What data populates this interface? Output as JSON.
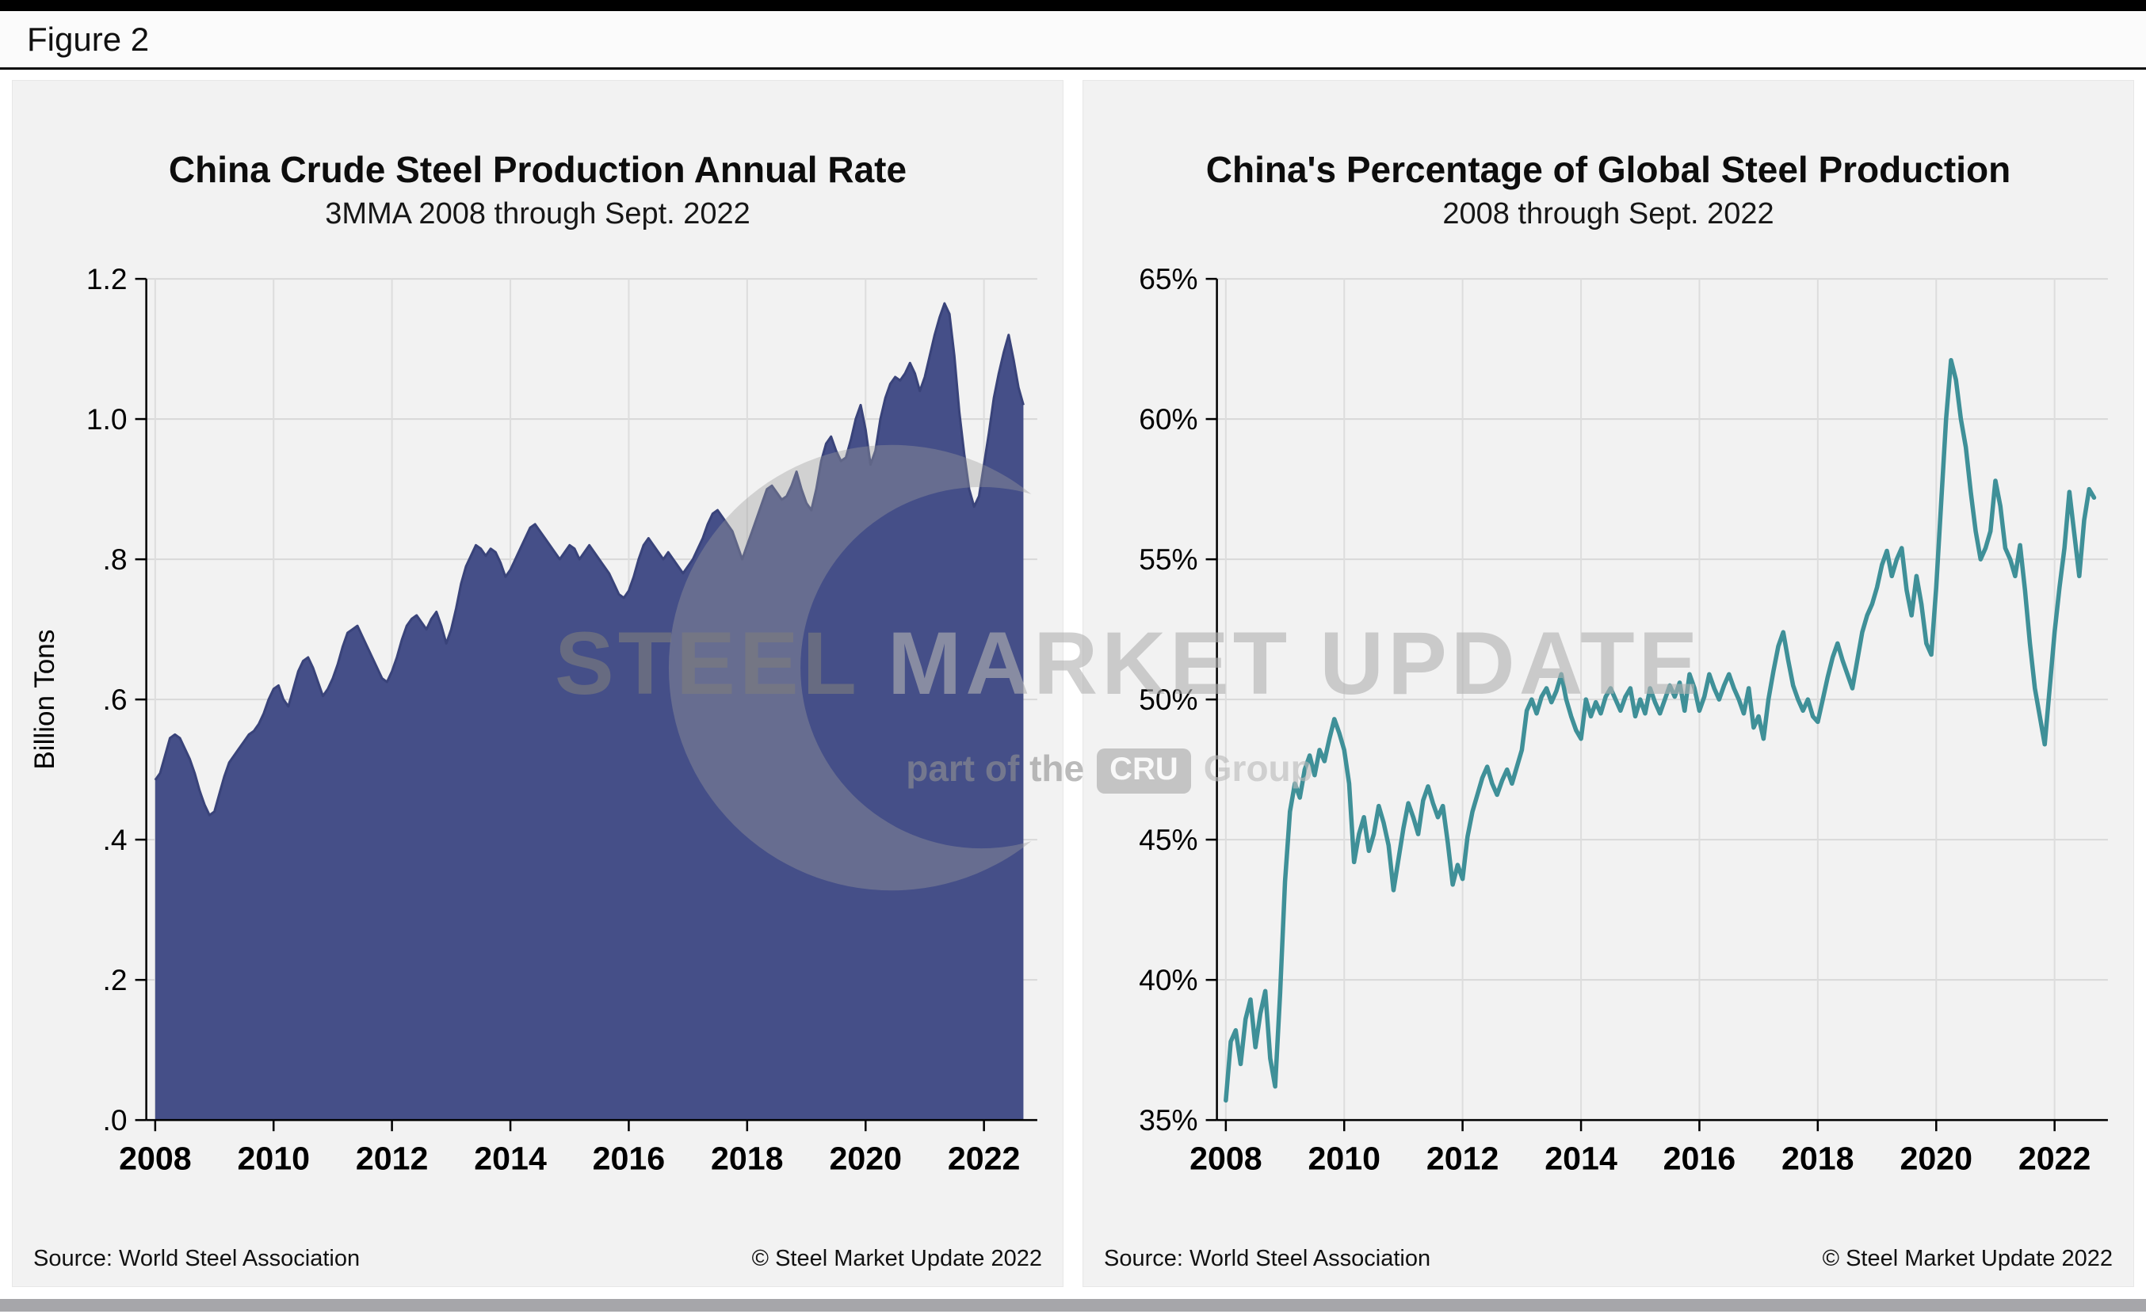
{
  "figure_label": "Figure 2",
  "watermark": {
    "steel": "STEEL",
    "market_update": " MARKET UPDATE",
    "part_of": "part of the",
    "cru": "CRU",
    "group": "Group"
  },
  "charts": [
    {
      "source": "Source: World Steel Association",
      "copyright": "© Steel Market Update 2022",
      "chart_data": {
        "type": "area",
        "title": "China Crude Steel Production Annual Rate",
        "subtitle": "3MMA 2008 through Sept. 2022",
        "ylabel": "Billion Tons",
        "xlabel": "",
        "color": "#454f88",
        "edge_color": "#39437a",
        "ylim": [
          0,
          1.2
        ],
        "xlim": [
          2007.85,
          2022.9
        ],
        "grid": true,
        "y_tick_values": [
          0,
          0.2,
          0.4,
          0.6,
          0.8,
          1.0,
          1.2
        ],
        "y_tick_labels": [
          ".0",
          ".2",
          ".4",
          ".6",
          ".8",
          "1.0",
          "1.2"
        ],
        "x_ticks": [
          2008,
          2010,
          2012,
          2014,
          2016,
          2018,
          2020,
          2022
        ],
        "x_start_year": 2008,
        "frequency": "monthly",
        "end_period": "Sept. 2022",
        "values": [
          0.485,
          0.495,
          0.52,
          0.545,
          0.55,
          0.545,
          0.53,
          0.515,
          0.495,
          0.47,
          0.45,
          0.435,
          0.44,
          0.465,
          0.49,
          0.51,
          0.52,
          0.53,
          0.54,
          0.55,
          0.555,
          0.565,
          0.58,
          0.6,
          0.615,
          0.62,
          0.6,
          0.59,
          0.615,
          0.64,
          0.655,
          0.66,
          0.645,
          0.625,
          0.605,
          0.615,
          0.63,
          0.65,
          0.675,
          0.695,
          0.7,
          0.705,
          0.69,
          0.675,
          0.66,
          0.645,
          0.63,
          0.625,
          0.64,
          0.66,
          0.685,
          0.705,
          0.715,
          0.72,
          0.71,
          0.7,
          0.715,
          0.725,
          0.705,
          0.68,
          0.7,
          0.73,
          0.765,
          0.79,
          0.805,
          0.82,
          0.815,
          0.805,
          0.815,
          0.81,
          0.795,
          0.775,
          0.785,
          0.8,
          0.815,
          0.83,
          0.845,
          0.85,
          0.84,
          0.83,
          0.82,
          0.81,
          0.8,
          0.81,
          0.82,
          0.815,
          0.8,
          0.81,
          0.82,
          0.81,
          0.8,
          0.79,
          0.78,
          0.765,
          0.75,
          0.745,
          0.755,
          0.775,
          0.8,
          0.82,
          0.83,
          0.82,
          0.81,
          0.8,
          0.81,
          0.8,
          0.79,
          0.78,
          0.79,
          0.8,
          0.815,
          0.83,
          0.85,
          0.865,
          0.87,
          0.86,
          0.85,
          0.84,
          0.82,
          0.8,
          0.82,
          0.84,
          0.86,
          0.88,
          0.9,
          0.905,
          0.895,
          0.885,
          0.89,
          0.905,
          0.925,
          0.9,
          0.88,
          0.87,
          0.9,
          0.94,
          0.965,
          0.975,
          0.955,
          0.94,
          0.945,
          0.97,
          1.0,
          1.02,
          0.985,
          0.935,
          0.955,
          1.0,
          1.03,
          1.05,
          1.06,
          1.055,
          1.065,
          1.08,
          1.065,
          1.04,
          1.06,
          1.09,
          1.12,
          1.145,
          1.165,
          1.15,
          1.09,
          1.01,
          0.95,
          0.9,
          0.875,
          0.89,
          0.935,
          0.98,
          1.03,
          1.065,
          1.095,
          1.12,
          1.085,
          1.045,
          1.02
        ]
      }
    },
    {
      "source": "Source: World Steel Association",
      "copyright": "© Steel Market Update 2022",
      "chart_data": {
        "type": "line",
        "title": "China's Percentage of Global Steel Production",
        "subtitle": "2008 through Sept. 2022",
        "ylabel": "",
        "xlabel": "",
        "color": "#3f9098",
        "ylim": [
          35,
          65
        ],
        "xlim": [
          2007.85,
          2022.9
        ],
        "grid": true,
        "y_tick_values": [
          35,
          40,
          45,
          50,
          55,
          60,
          65
        ],
        "y_tick_labels": [
          "35%",
          "40%",
          "45%",
          "50%",
          "55%",
          "60%",
          "65%"
        ],
        "x_ticks": [
          2008,
          2010,
          2012,
          2014,
          2016,
          2018,
          2020,
          2022
        ],
        "x_start_year": 2008,
        "frequency": "monthly",
        "end_period": "Sept. 2022",
        "values": [
          35.7,
          37.8,
          38.2,
          37.0,
          38.6,
          39.3,
          37.6,
          38.8,
          39.6,
          37.2,
          36.2,
          39.5,
          43.5,
          46.0,
          47.0,
          46.5,
          47.5,
          48.0,
          47.3,
          48.2,
          47.8,
          48.6,
          49.3,
          48.8,
          48.2,
          47.0,
          44.2,
          45.2,
          45.8,
          44.6,
          45.2,
          46.2,
          45.6,
          44.8,
          43.2,
          44.3,
          45.4,
          46.3,
          45.8,
          45.2,
          46.4,
          46.9,
          46.3,
          45.8,
          46.2,
          44.9,
          43.4,
          44.1,
          43.6,
          45.1,
          46.0,
          46.6,
          47.2,
          47.6,
          47.0,
          46.6,
          47.1,
          47.5,
          47.0,
          47.6,
          48.2,
          49.6,
          50.0,
          49.5,
          50.1,
          50.4,
          49.9,
          50.3,
          50.9,
          50.0,
          49.4,
          48.9,
          48.6,
          50.0,
          49.4,
          49.9,
          49.5,
          50.1,
          50.4,
          50.0,
          49.6,
          50.1,
          50.4,
          49.4,
          50.0,
          49.5,
          50.4,
          49.9,
          49.5,
          50.0,
          50.5,
          50.1,
          50.6,
          49.6,
          50.9,
          50.4,
          49.6,
          50.1,
          50.9,
          50.4,
          50.0,
          50.5,
          50.9,
          50.4,
          50.0,
          49.5,
          50.4,
          49.0,
          49.4,
          48.6,
          50.0,
          51.0,
          51.9,
          52.4,
          51.4,
          50.5,
          50.0,
          49.6,
          50.0,
          49.4,
          49.2,
          50.0,
          50.8,
          51.5,
          52.0,
          51.4,
          50.9,
          50.4,
          51.4,
          52.4,
          53.0,
          53.4,
          54.0,
          54.8,
          55.3,
          54.4,
          55.0,
          55.4,
          53.9,
          53.0,
          54.4,
          53.4,
          52.0,
          51.6,
          54.0,
          57.0,
          60.0,
          62.1,
          61.4,
          60.0,
          59.0,
          57.4,
          56.0,
          55.0,
          55.4,
          56.0,
          57.8,
          56.9,
          55.4,
          55.0,
          54.4,
          55.5,
          53.9,
          52.0,
          50.4,
          49.4,
          48.4,
          50.4,
          52.4,
          54.0,
          55.4,
          57.4,
          55.9,
          54.4,
          56.4,
          57.5,
          57.2
        ]
      }
    }
  ]
}
